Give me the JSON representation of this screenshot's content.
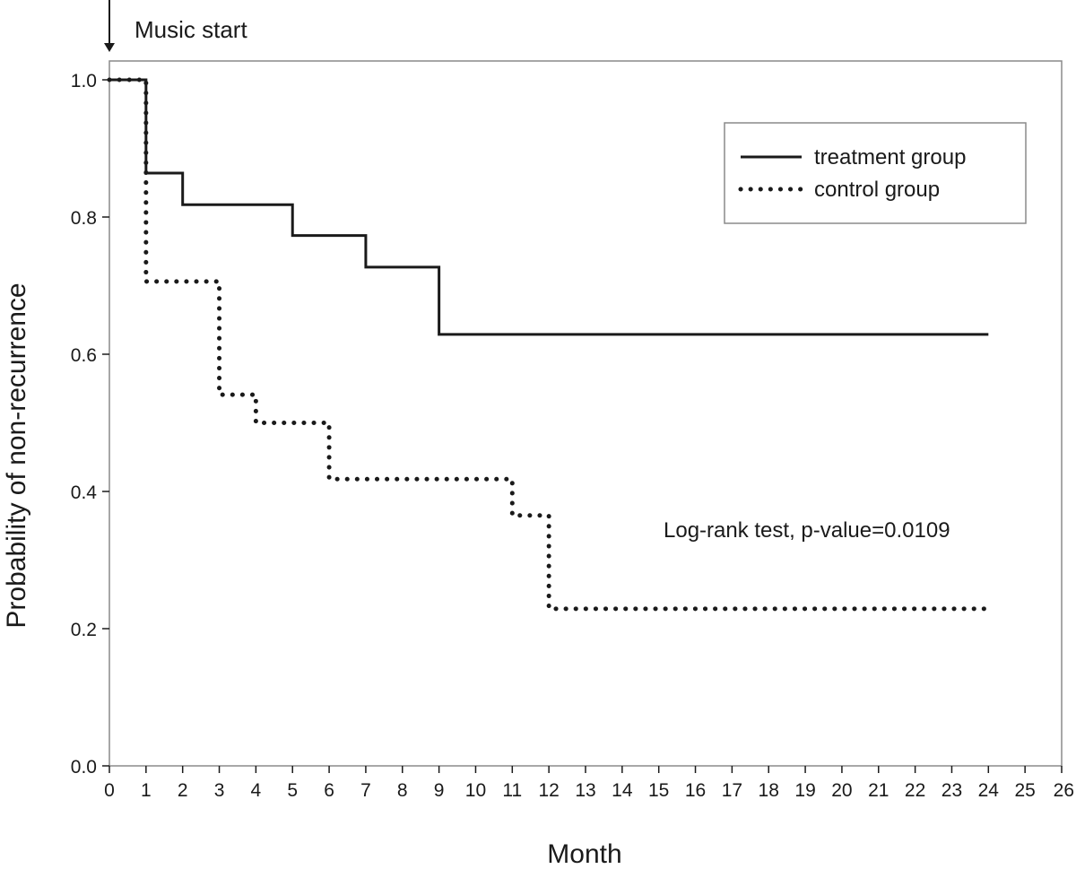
{
  "chart_data": {
    "type": "line",
    "subtype": "step",
    "title": "",
    "xlabel": "Month",
    "ylabel": "Probability of non-recurrence",
    "xlim": [
      0,
      26
    ],
    "ylim": [
      0.0,
      1.0
    ],
    "x_ticks": [
      "0",
      "1",
      "2",
      "3",
      "4",
      "5",
      "6",
      "7",
      "8",
      "9",
      "10",
      "11",
      "12",
      "13",
      "14",
      "15",
      "16",
      "17",
      "18",
      "19",
      "20",
      "21",
      "22",
      "23",
      "24",
      "25",
      "26"
    ],
    "y_ticks": [
      "0.0",
      "0.2",
      "0.4",
      "0.6",
      "0.8",
      "1.0"
    ],
    "grid": false,
    "legend_position": "top-right",
    "series": [
      {
        "name": "treatment group",
        "style": "solid",
        "x": [
          0,
          1,
          2,
          5,
          7,
          9,
          24
        ],
        "y": [
          1.0,
          0.864,
          0.818,
          0.773,
          0.727,
          0.629,
          0.629
        ]
      },
      {
        "name": "control group",
        "style": "dotted",
        "x": [
          0,
          1,
          3,
          4,
          6,
          11,
          12,
          24
        ],
        "y": [
          1.0,
          0.706,
          0.541,
          0.5,
          0.418,
          0.365,
          0.229,
          0.229
        ]
      }
    ],
    "annotations": {
      "start_marker": "Music start",
      "test_text": "Log-rank test, p-value=0.0109"
    }
  }
}
